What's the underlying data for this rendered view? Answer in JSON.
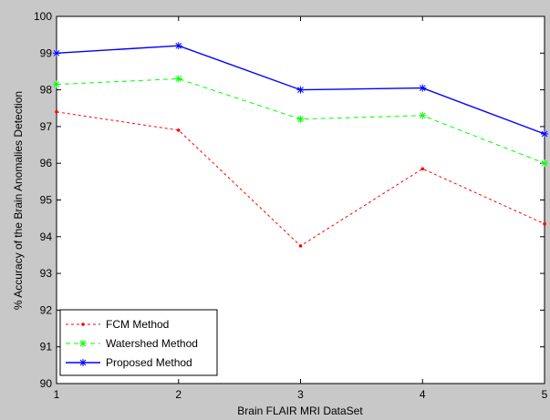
{
  "chart_data": {
    "type": "line",
    "title": "",
    "xlabel": "Brain FLAIR MRI DataSet",
    "ylabel": "% Accuracy of the Brain Anomalies Detection",
    "x": [
      1,
      2,
      3,
      4,
      5
    ],
    "xlim": [
      1,
      5
    ],
    "ylim": [
      90,
      100
    ],
    "xticks": [
      "1",
      "2",
      "3",
      "4",
      "5"
    ],
    "yticks": [
      "90",
      "91",
      "92",
      "93",
      "94",
      "95",
      "96",
      "97",
      "98",
      "99",
      "100"
    ],
    "grid": false,
    "legend_position": "bottom-left",
    "series": [
      {
        "name": "FCM Method",
        "values": [
          97.4,
          96.9,
          93.75,
          95.85,
          94.35
        ],
        "color": "#ff0000",
        "line_style": "dotted",
        "marker": "point"
      },
      {
        "name": "Watershed Method",
        "values": [
          98.15,
          98.3,
          97.2,
          97.3,
          96.0
        ],
        "color": "#00ff00",
        "line_style": "dashed",
        "marker": "star"
      },
      {
        "name": "Proposed Method",
        "values": [
          99.0,
          99.2,
          98.0,
          98.05,
          96.8
        ],
        "color": "#0000ff",
        "line_style": "solid",
        "marker": "star"
      }
    ]
  }
}
